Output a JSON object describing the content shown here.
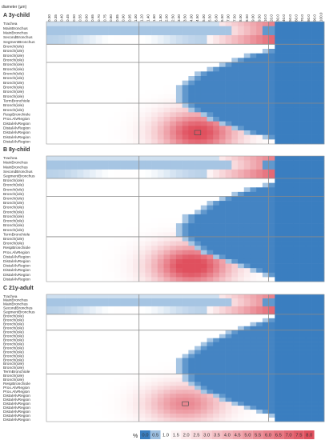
{
  "chart_data": {
    "type": "heatmap",
    "axis_title": "diameter (µm)",
    "x_ticks": [
      "0.30",
      "0.35",
      "0.40",
      "0.45",
      "0.50",
      "0.55",
      "0.60",
      "0.65",
      "0.70",
      "0.75",
      "0.80",
      "0.85",
      "0.90",
      "0.95",
      "1.00",
      "1.20",
      "1.40",
      "1.60",
      "1.80",
      "2.00",
      "2.50",
      "3.00",
      "3.50",
      "4.00",
      "4.50",
      "5.00",
      "5.50",
      "6.00",
      "6.50",
      "7.00",
      "7.50",
      "8.00",
      "8.50",
      "9.00",
      "9.50",
      "10.0",
      "20.0",
      "30.0",
      "40.0",
      "50.0",
      "60.0",
      "70.0",
      "80.0",
      "90.0",
      "100.0"
    ],
    "panels": [
      {
        "letter": "A",
        "title": "3y-child",
        "rows": [
          "Trachea",
          "MainBronchus",
          "MainBronchus",
          "SecondBronchus",
          "SegmentBronchus",
          "Bronch(iole)",
          "Bronch(iole)",
          "Bronch(iole)",
          "Bronch(iole)",
          "Bronch(iole)",
          "Bronch(iole)",
          "Bronch(iole)",
          "Bronch(iole)",
          "Bronch(iole)",
          "Bronch(iole)",
          "Bronch(iole)",
          "Bronch(iole)",
          "TermBronchiole",
          "Bronch(iole)",
          "Bronch(iole)",
          "RespBronchiole",
          "Prox.AlvRegion",
          "DistalAlvRegion",
          "DistalAlvRegion",
          "DistalAlvRegion",
          "DistalAlvRegion",
          "DistalAlvRegion"
        ],
        "dividers": [
          5,
          9,
          18
        ],
        "peak_col": 24,
        "peak_row": 24,
        "peak_val": 7.4,
        "marker": [
          24,
          24
        ]
      },
      {
        "letter": "B",
        "title": "8y-child",
        "rows": [
          "Trachea",
          "MainBronchus",
          "MainBronchus",
          "SecondBronchus",
          "SegmentBronchus",
          "Bronch(iole)",
          "Bronch(iole)",
          "Bronch(iole)",
          "Bronch(iole)",
          "Bronch(iole)",
          "Bronch(iole)",
          "Bronch(iole)",
          "Bronch(iole)",
          "Bronch(iole)",
          "Bronch(iole)",
          "Bronch(iole)",
          "Bronch(iole)",
          "TermBronchiole",
          "Bronch(iole)",
          "Bronch(iole)",
          "RespBronchiole",
          "Prox.AlvRegion",
          "DistalAlvRegion",
          "DistalAlvRegion",
          "DistalAlvRegion",
          "DistalAlvRegion",
          "DistalAlvRegion",
          "DistalAlvRegion"
        ],
        "dividers": [
          5,
          9,
          18
        ],
        "peak_col": 23,
        "peak_row": 24,
        "peak_val": 7.9,
        "marker": null
      },
      {
        "letter": "C",
        "title": "21y-adult",
        "rows": [
          "Trachea",
          "MainBronchus",
          "MainBronchus",
          "SecondBronchus",
          "SegmentBronchus",
          "Bronch(iole)",
          "Bronch(iole)",
          "Bronch(iole)",
          "Bronch(iole)",
          "Bronch(iole)",
          "Bronch(iole)",
          "Bronch(iole)",
          "Bronch(iole)",
          "Bronch(iole)",
          "Bronch(iole)",
          "Bronch(iole)",
          "Bronch(iole)",
          "Bronch(iole)",
          "Bronch(iole)",
          "TermBronchiole",
          "Bronch(iole)",
          "Bronch(iole)",
          "RespBronchiole",
          "Prox.AlvRegion",
          "Prox.AlvRegion",
          "DistalAlvRegion",
          "DistalAlvRegion",
          "DistalAlvRegion",
          "DistalAlvRegion",
          "DistalAlvRegion",
          "DistalAlvRegion",
          "DistalAlvRegion"
        ],
        "dividers": [
          5,
          9,
          20
        ],
        "peak_col": 22,
        "peak_row": 27,
        "peak_val": 4.8,
        "marker": [
          22,
          27
        ]
      }
    ],
    "legend": {
      "symbol": "%",
      "labels": [
        "0.0",
        "0.5",
        "1.0",
        "1.5",
        "2.0",
        "2.5",
        "3.0",
        "3.5",
        "4.0",
        "4.5",
        "5.0",
        "5.5",
        "6.0",
        "6.5",
        "7.0",
        "7.5",
        "8.0"
      ]
    },
    "colors": {
      "blue": "#3a7ec0",
      "white": "#ffffff",
      "red": "#e0505e",
      "divider": "#8a8a8a"
    },
    "scale_min": 0,
    "scale_max": 8
  }
}
